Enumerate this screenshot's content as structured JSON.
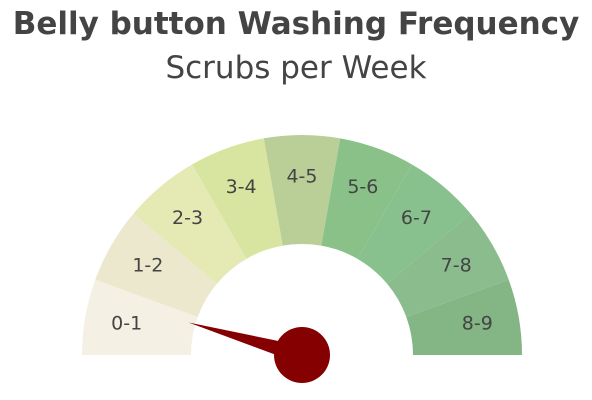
{
  "chart_data": {
    "type": "gauge",
    "title": "Belly button Washing Frequency",
    "subtitle": "Scrubs per Week",
    "range": [
      0,
      9
    ],
    "value": 0.8,
    "segments": [
      {
        "label": "0-1",
        "from": 0,
        "to": 1,
        "color": "#f4f0e4"
      },
      {
        "label": "1-2",
        "from": 1,
        "to": 2,
        "color": "#ece8cd"
      },
      {
        "label": "2-3",
        "from": 2,
        "to": 3,
        "color": "#e5e9b4"
      },
      {
        "label": "3-4",
        "from": 3,
        "to": 4,
        "color": "#d7e5a0"
      },
      {
        "label": "4-5",
        "from": 4,
        "to": 5,
        "color": "#b9cf97"
      },
      {
        "label": "5-6",
        "from": 5,
        "to": 6,
        "color": "#8ac189"
      },
      {
        "label": "6-7",
        "from": 6,
        "to": 7,
        "color": "#88c18d"
      },
      {
        "label": "7-8",
        "from": 7,
        "to": 8,
        "color": "#8abc8e"
      },
      {
        "label": "8-9",
        "from": 8,
        "to": 9,
        "color": "#83b585"
      }
    ],
    "needle_color": "#850000"
  }
}
